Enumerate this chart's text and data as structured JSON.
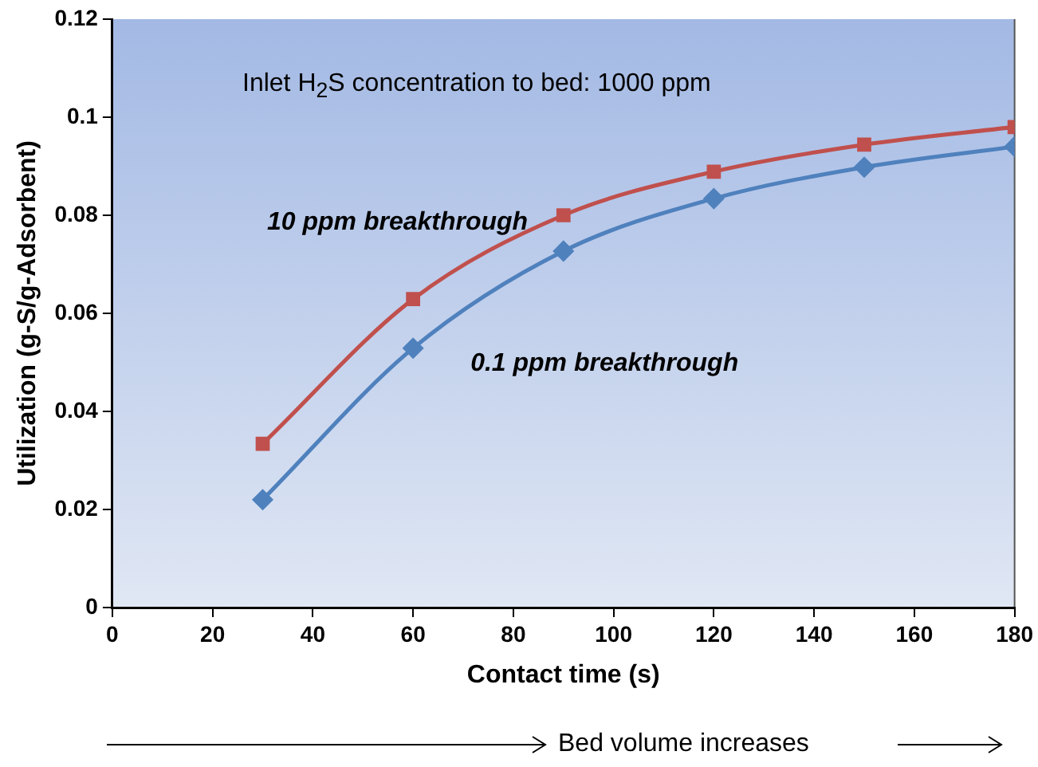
{
  "chart_data": {
    "type": "line",
    "xlabel": "Contact time (s)",
    "ylabel": "Utilization (g-S/g-Adsorbent)",
    "x": [
      30,
      60,
      90,
      120,
      150,
      180
    ],
    "series": [
      {
        "name": "10 ppm breakthrough",
        "color": "#c0504d",
        "marker": "square",
        "values": [
          0.0334,
          0.0629,
          0.08,
          0.0889,
          0.0944,
          0.098
        ]
      },
      {
        "name": "0.1 ppm breakthrough",
        "color": "#4f81bd",
        "marker": "diamond",
        "values": [
          0.022,
          0.0529,
          0.0727,
          0.0834,
          0.0898,
          0.094
        ]
      }
    ],
    "xlim": [
      0,
      180
    ],
    "xticks": [
      0,
      20,
      40,
      60,
      80,
      100,
      120,
      140,
      160,
      180
    ],
    "ylim": [
      0,
      0.12
    ],
    "yticks": [
      0,
      0.02,
      0.04,
      0.06,
      0.08,
      0.1,
      0.12
    ],
    "grid": false,
    "legend": false,
    "annotations": [
      "Inlet H$_{2}$S concentration to bed: 1000 ppm",
      "Bed volume increases"
    ]
  }
}
